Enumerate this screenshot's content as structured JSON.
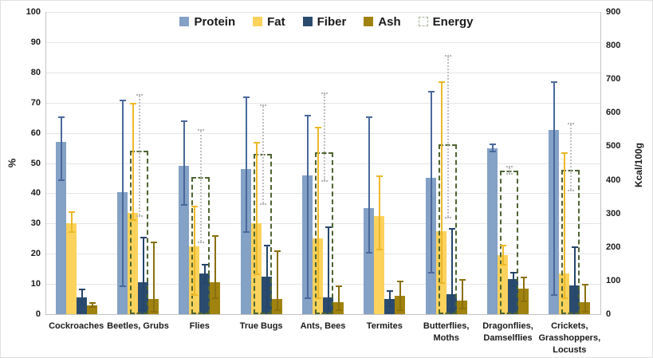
{
  "chart_data": {
    "type": "bar",
    "title": "",
    "left_axis": {
      "label": "%",
      "min": 0,
      "max": 100,
      "step": 10
    },
    "right_axis": {
      "label": "Kcal/100g",
      "min": 0,
      "max": 900,
      "step": 100
    },
    "legend_position": "top-center",
    "grid": true,
    "categories": [
      "Cockroaches",
      "Beetles, Grubs",
      "Flies",
      "True Bugs",
      "Ants, Bees",
      "Termites",
      "Butterflies,\nMoths",
      "Dragonflies,\nDamselflies",
      "Crickets,\nGrasshoppers,\nLocusts"
    ],
    "series": [
      {
        "name": "Protein",
        "axis": "left",
        "unit": "%",
        "values": [
          57,
          40.5,
          49,
          48,
          46,
          35,
          45,
          55,
          61
        ],
        "error_low": [
          44,
          9,
          36,
          27,
          5,
          20,
          13.5,
          53.5,
          6
        ],
        "error_high": [
          65.5,
          71,
          64,
          72,
          66,
          65.5,
          74,
          56.5,
          77
        ]
      },
      {
        "name": "Fat",
        "axis": "left",
        "unit": "%",
        "values": [
          30,
          33.5,
          22.5,
          30,
          25,
          32.5,
          27.5,
          19.5,
          13.5
        ],
        "error_low": [
          27,
          31,
          6,
          13,
          5,
          21,
          10,
          16,
          5
        ],
        "error_high": [
          34,
          70,
          36,
          57,
          62,
          46,
          77,
          23,
          53.5
        ]
      },
      {
        "name": "Fiber",
        "axis": "left",
        "unit": "%",
        "values": [
          5.5,
          10.5,
          13.5,
          12.5,
          5.5,
          5,
          6.5,
          11.5,
          9.5
        ],
        "error_low": [
          3,
          1,
          10,
          2,
          1,
          2.5,
          1,
          9,
          5
        ],
        "error_high": [
          8.5,
          25.5,
          16.5,
          23,
          29,
          8,
          28.5,
          14,
          22.5
        ]
      },
      {
        "name": "Ash",
        "axis": "left",
        "unit": "%",
        "values": [
          3,
          5,
          10.5,
          5,
          4,
          6,
          4.5,
          8.5,
          4
        ],
        "error_low": [
          2,
          0.5,
          5,
          1,
          1,
          1,
          1.5,
          4,
          0.5
        ],
        "error_high": [
          4,
          24,
          26,
          21,
          9.5,
          11,
          11.5,
          12.5,
          10
        ]
      },
      {
        "name": "Energy",
        "axis": "right",
        "unit": "Kcal/100g",
        "values": [
          null,
          486,
          408,
          477,
          481,
          null,
          506,
          428,
          429
        ],
        "error_low": [
          null,
          295,
          215,
          330,
          400,
          null,
          290,
          420,
          370
        ],
        "error_high": [
          null,
          650,
          545,
          620,
          655,
          null,
          768,
          437,
          565
        ]
      }
    ],
    "colors": {
      "protein": "#84a1c6",
      "protein_err": "#49699b",
      "fat": "#fbd25c",
      "fat_err": "#edb829",
      "fiber": "#2b4b6e",
      "fiber_err": "#24466a",
      "ash": "#a0820f",
      "ash_err": "#8a700d",
      "energy_border": "#4e6430",
      "energy_err": "#bfbfbf",
      "energy_legend_border": "#a6b596",
      "gridline": "#e5e5e5",
      "axis_line": "#c3c3c3"
    }
  }
}
